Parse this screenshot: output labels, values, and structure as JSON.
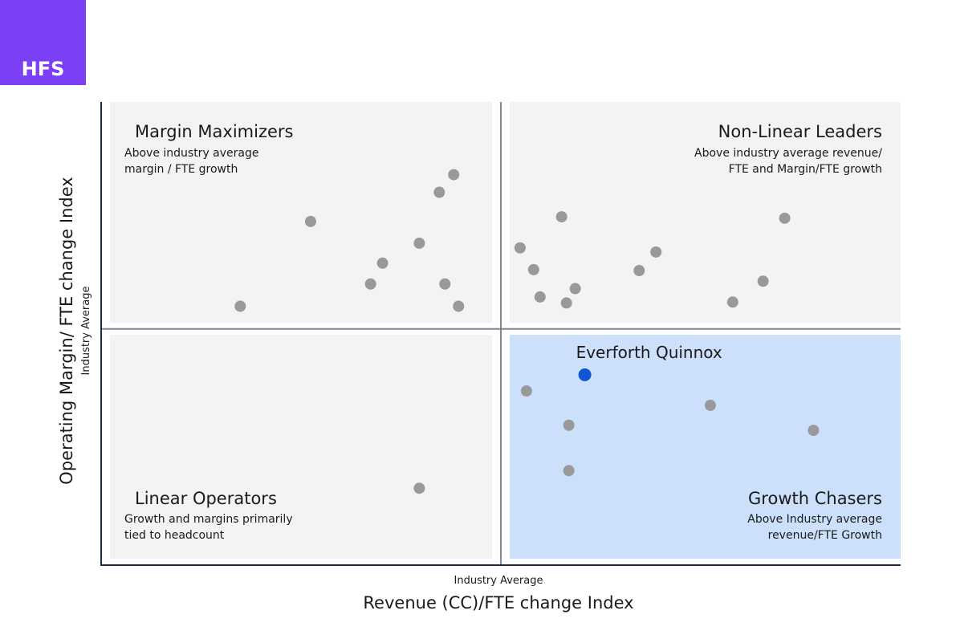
{
  "brand": {
    "logo_text": "HFS",
    "color": "#7b3ff6"
  },
  "chart_data": {
    "type": "scatter",
    "xlabel": "Revenue (CC)/FTE change Index",
    "ylabel": "Operating Margin/ FTE change Index",
    "x_reference_label": "Industry Average",
    "y_reference_label": "Industry Average",
    "xlim": [
      0,
      100
    ],
    "ylim": [
      0,
      100
    ],
    "x_reference": 50,
    "y_reference": 51,
    "grid": false,
    "colors": {
      "point": "#999999",
      "highlight": "#0f55d4",
      "highlight_quadrant": "#cde0fb",
      "quadrant": "#f3f3f3",
      "axis": "#1e2a4a",
      "growth_title": "#1657c2"
    },
    "quadrants": [
      {
        "id": "top-left",
        "title": "Margin Maximizers",
        "desc": [
          "Above industry average",
          "margin / FTE growth"
        ]
      },
      {
        "id": "top-right",
        "title": "Non-Linear Leaders",
        "desc": [
          "Above industry average revenue/",
          "FTE and Margin/FTE growth"
        ]
      },
      {
        "id": "bottom-left",
        "title": "Linear Operators",
        "desc": [
          "Growth and margins primarily",
          "tied to headcount"
        ]
      },
      {
        "id": "bottom-right",
        "title": "Growth Chasers",
        "desc": [
          "Above Industry average",
          "revenue/FTE Growth"
        ]
      }
    ],
    "points": [
      {
        "x": 17.4,
        "y": 55.9
      },
      {
        "x": 26.2,
        "y": 74.2
      },
      {
        "x": 33.7,
        "y": 60.7
      },
      {
        "x": 35.2,
        "y": 65.2
      },
      {
        "x": 39.8,
        "y": 69.5
      },
      {
        "x": 42.3,
        "y": 80.5
      },
      {
        "x": 43.0,
        "y": 60.7
      },
      {
        "x": 44.1,
        "y": 84.3
      },
      {
        "x": 44.7,
        "y": 55.9
      },
      {
        "x": 52.4,
        "y": 68.5
      },
      {
        "x": 54.1,
        "y": 63.8
      },
      {
        "x": 54.9,
        "y": 57.9
      },
      {
        "x": 57.6,
        "y": 75.2
      },
      {
        "x": 58.2,
        "y": 56.6
      },
      {
        "x": 59.3,
        "y": 59.7
      },
      {
        "x": 67.3,
        "y": 63.6
      },
      {
        "x": 69.4,
        "y": 67.6
      },
      {
        "x": 79.0,
        "y": 56.8
      },
      {
        "x": 82.8,
        "y": 61.3
      },
      {
        "x": 85.5,
        "y": 74.9
      },
      {
        "x": 53.2,
        "y": 37.6
      },
      {
        "x": 58.5,
        "y": 30.2
      },
      {
        "x": 58.5,
        "y": 20.4
      },
      {
        "x": 76.2,
        "y": 34.5
      },
      {
        "x": 89.1,
        "y": 29.1
      },
      {
        "x": 39.8,
        "y": 16.6
      }
    ],
    "highlight": {
      "label": "Everforth Quinnox",
      "x": 60.5,
      "y": 41.1
    }
  }
}
